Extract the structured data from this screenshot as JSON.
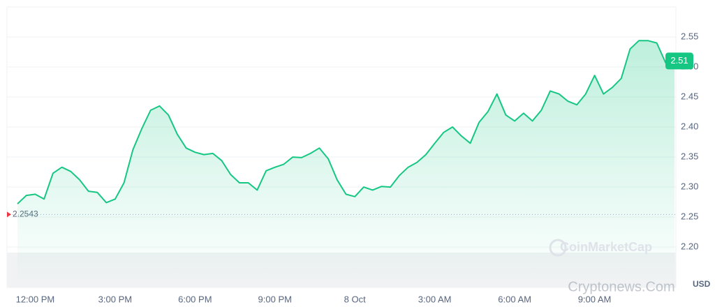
{
  "chart_data": {
    "type": "line",
    "categories": [
      null,
      null,
      "12:00 PM",
      null,
      null,
      null,
      null,
      null,
      null,
      null,
      null,
      "3:00 PM",
      null,
      null,
      null,
      null,
      null,
      null,
      null,
      null,
      "6:00 PM",
      null,
      null,
      null,
      null,
      null,
      null,
      null,
      null,
      "9:00 PM",
      null,
      null,
      null,
      null,
      null,
      null,
      null,
      null,
      "8 Oct",
      null,
      null,
      null,
      null,
      null,
      null,
      null,
      null,
      "3:00 AM",
      null,
      null,
      null,
      null,
      null,
      null,
      null,
      null,
      "6:00 AM",
      null,
      null,
      null,
      null,
      null,
      null,
      null,
      null,
      "9:00 AM",
      null,
      null,
      null,
      null,
      null,
      null,
      null,
      null,
      null
    ],
    "series": [
      {
        "color": "#16c784",
        "values": [
          2.272,
          2.286,
          2.288,
          2.28,
          2.323,
          2.333,
          2.326,
          2.312,
          2.293,
          2.291,
          2.274,
          2.28,
          2.307,
          2.362,
          2.397,
          2.428,
          2.435,
          2.42,
          2.388,
          2.365,
          2.358,
          2.354,
          2.356,
          2.344,
          2.321,
          2.307,
          2.307,
          2.295,
          2.327,
          2.333,
          2.338,
          2.35,
          2.349,
          2.356,
          2.365,
          2.347,
          2.312,
          2.288,
          2.284,
          2.3,
          2.295,
          2.301,
          2.3,
          2.319,
          2.333,
          2.341,
          2.354,
          2.373,
          2.391,
          2.4,
          2.385,
          2.373,
          2.408,
          2.426,
          2.455,
          2.42,
          2.41,
          2.423,
          2.41,
          2.428,
          2.46,
          2.455,
          2.443,
          2.437,
          2.455,
          2.486,
          2.455,
          2.466,
          2.481,
          2.53,
          2.544,
          2.544,
          2.54,
          2.507,
          2.516
        ]
      }
    ],
    "ylim": [
      2.135,
      2.6
    ],
    "yticks": [
      {
        "value": 2.2,
        "label": "2.20"
      },
      2.25,
      {
        "value": 2.3,
        "label": "2.30"
      },
      2.35,
      {
        "value": 2.4,
        "label": "2.40"
      },
      2.45,
      {
        "value": 2.5,
        "label": "2.50"
      },
      2.55
    ],
    "grid": true,
    "current_price": 2.51,
    "reference_price": 2.2543,
    "unit": "USD",
    "watermark": "CoinMarketCap",
    "source": "Cryptonews.Com"
  }
}
